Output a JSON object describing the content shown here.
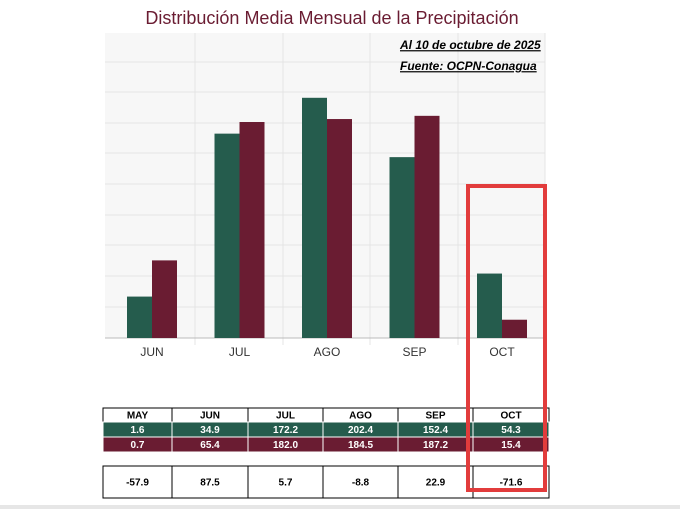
{
  "chart_data": {
    "type": "bar",
    "title": "Distribución Media Mensual de la Precipitación",
    "annotations": [
      "Al 10 de octubre de 2025",
      "Fuente: OCPN-Conagua"
    ],
    "categories": [
      "MAY",
      "JUN",
      "JUL",
      "AGO",
      "SEP",
      "OCT"
    ],
    "series": [
      {
        "color": "#255c4d",
        "values": [
          1.6,
          34.9,
          172.2,
          202.4,
          152.4,
          54.3
        ]
      },
      {
        "color": "#6a1c32",
        "values": [
          0.7,
          65.4,
          182.0,
          184.5,
          187.2,
          15.4
        ],
        "value_labels": [
          "0.7",
          "65.4",
          "182.0",
          "184.5",
          "187.2",
          "15.4"
        ]
      }
    ],
    "differences": [
      -57.9,
      87.5,
      5.7,
      -8.8,
      22.9,
      -71.6
    ],
    "ylim": [
      0,
      257
    ]
  }
}
